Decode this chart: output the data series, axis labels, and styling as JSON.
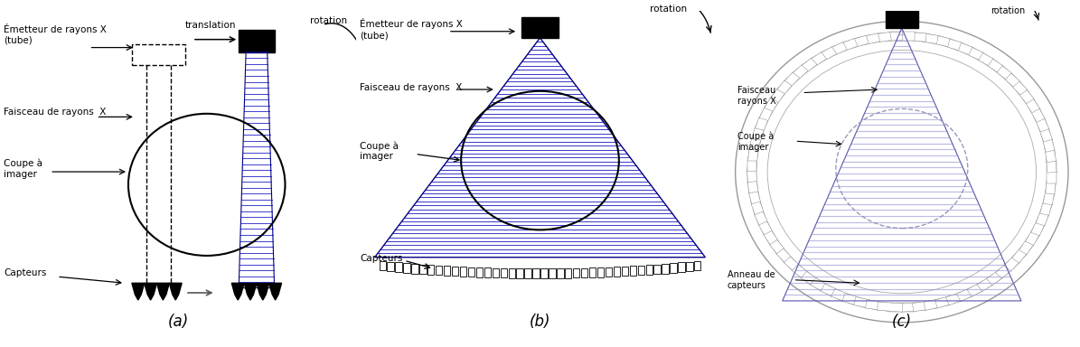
{
  "fig_width": 11.95,
  "fig_height": 3.84,
  "bg_color": "#ffffff",
  "beam_line_color": "#0000bb",
  "beam_line_alpha": 0.75,
  "panel_a": {
    "label": "(a)",
    "emetteur_label": "Émetteur de rayons X\n(tube)",
    "faisceau_label": "Faisceau de rayons  X",
    "coupe_label": "Coupe à\nimager",
    "capteurs_label": "Capteurs",
    "translation_label": "translation",
    "rotation_label": "rotation"
  },
  "panel_b": {
    "label": "(b)",
    "emetteur_label": "Émetteur de rayons X\n(tube)",
    "faisceau_label": "Faisceau de rayons  X",
    "coupe_label": "Coupe à\nimager",
    "capteurs_label": "Capteurs",
    "rotation_label": "rotation"
  },
  "panel_c": {
    "label": "(c)",
    "faisceau_label": "Faisceau\nrayons X",
    "coupe_label": "Coupe à\nimager",
    "anneau_label": "Anneau de\ncapteurs",
    "rotation_label": "rotation"
  }
}
